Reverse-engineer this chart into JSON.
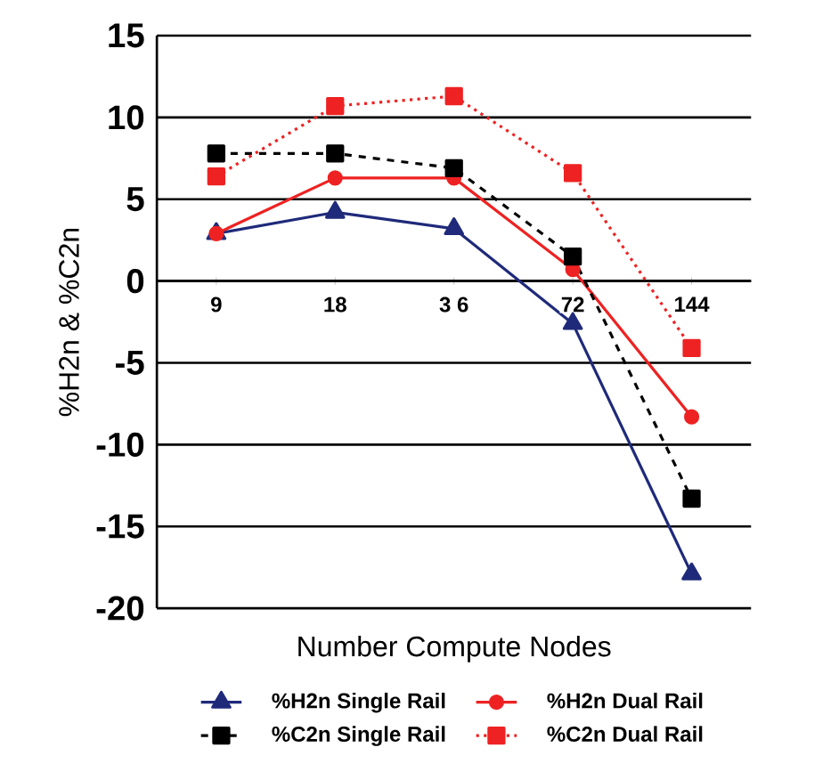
{
  "chart_data": {
    "type": "line",
    "xlabel": "Number Compute Nodes",
    "ylabel": "%H2n & %C2n",
    "categories": [
      "9",
      "18",
      "3 6",
      "72",
      "144"
    ],
    "ylim": [
      -20,
      15
    ],
    "yticks": [
      -20,
      -15,
      -10,
      -5,
      0,
      5,
      10,
      15
    ],
    "grid": "y",
    "legend": "bottom",
    "series": [
      {
        "name": "%H2n Single Rail",
        "color": "#1f2a7a",
        "marker": "triangle",
        "line_style": "solid",
        "values": [
          2.9,
          4.2,
          3.2,
          -2.6,
          -17.9
        ]
      },
      {
        "name": "%H2n Dual Rail",
        "color": "#ee2222",
        "marker": "circle",
        "line_style": "solid",
        "values": [
          2.9,
          6.3,
          6.3,
          0.7,
          -8.3
        ]
      },
      {
        "name": "%C2n Single Rail",
        "color": "#000000",
        "marker": "square",
        "line_style": "dashed",
        "values": [
          7.8,
          7.8,
          6.9,
          1.5,
          -13.3
        ]
      },
      {
        "name": "%C2n Dual Rail",
        "color": "#ee2222",
        "marker": "square",
        "line_style": "dotted",
        "values": [
          6.4,
          10.7,
          11.3,
          6.6,
          -4.1
        ]
      }
    ]
  }
}
